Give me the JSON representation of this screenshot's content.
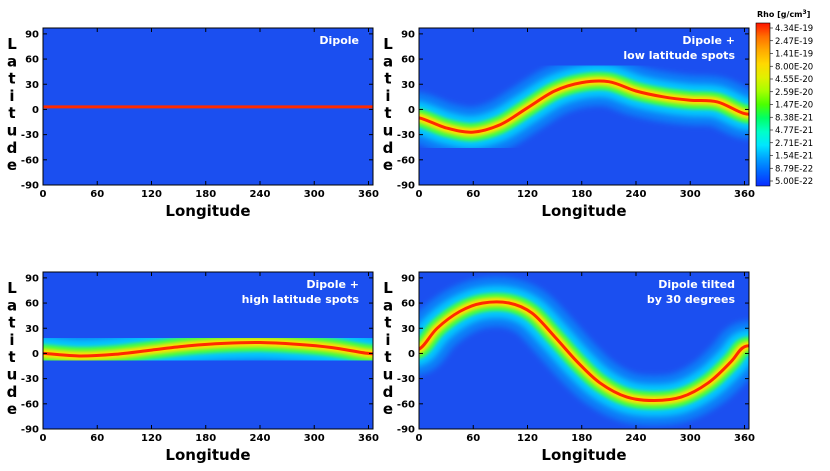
{
  "chart_data": [
    {
      "type": "heatmap",
      "title_lines": [
        "Dipole"
      ],
      "xlabel": "Longitude",
      "ylabel": "Latitude",
      "xlim": [
        0,
        365
      ],
      "ylim": [
        -90,
        97
      ],
      "xticks": [
        "0",
        "60",
        "120",
        "180",
        "240",
        "300",
        "360"
      ],
      "yticks": [
        "90",
        "60",
        "30",
        "0",
        "-30",
        "-60",
        "-90"
      ],
      "current_sheet": [
        [
          0,
          3
        ],
        [
          60,
          3
        ],
        [
          120,
          3
        ],
        [
          180,
          3
        ],
        [
          240,
          3
        ],
        [
          300,
          3
        ],
        [
          360,
          3
        ]
      ]
    },
    {
      "type": "heatmap",
      "title_lines": [
        "Dipole +",
        "low latitude spots"
      ],
      "xlabel": "Longitude",
      "ylabel": "Latitude",
      "xlim": [
        0,
        365
      ],
      "ylim": [
        -90,
        97
      ],
      "xticks": [
        "0",
        "60",
        "120",
        "180",
        "240",
        "300",
        "360"
      ],
      "yticks": [
        "90",
        "60",
        "30",
        "0",
        "-30",
        "-60",
        "-90"
      ],
      "current_sheet": [
        [
          0,
          -10
        ],
        [
          30,
          -22
        ],
        [
          60,
          -27
        ],
        [
          90,
          -18
        ],
        [
          120,
          2
        ],
        [
          150,
          22
        ],
        [
          180,
          32
        ],
        [
          210,
          33
        ],
        [
          240,
          22
        ],
        [
          270,
          15
        ],
        [
          300,
          11
        ],
        [
          330,
          9
        ],
        [
          360,
          -5
        ]
      ]
    },
    {
      "type": "heatmap",
      "title_lines": [
        "Dipole +",
        "high latitude spots"
      ],
      "xlabel": "Longitude",
      "ylabel": "Latitude",
      "xlim": [
        0,
        365
      ],
      "ylim": [
        -90,
        97
      ],
      "xticks": [
        "0",
        "60",
        "120",
        "180",
        "240",
        "300",
        "360"
      ],
      "yticks": [
        "90",
        "60",
        "30",
        "0",
        "-30",
        "-60",
        "-90"
      ],
      "current_sheet": [
        [
          0,
          0
        ],
        [
          40,
          -3
        ],
        [
          80,
          -1
        ],
        [
          120,
          4
        ],
        [
          160,
          9
        ],
        [
          200,
          12
        ],
        [
          240,
          13
        ],
        [
          280,
          11
        ],
        [
          320,
          7
        ],
        [
          360,
          0
        ]
      ]
    },
    {
      "type": "heatmap",
      "title_lines": [
        "Dipole tilted",
        "by 30 degrees"
      ],
      "xlabel": "Longitude",
      "ylabel": "Latitude",
      "xlim": [
        0,
        365
      ],
      "ylim": [
        -90,
        97
      ],
      "xticks": [
        "0",
        "60",
        "120",
        "180",
        "240",
        "300",
        "360"
      ],
      "yticks": [
        "90",
        "60",
        "30",
        "0",
        "-30",
        "-60",
        "-90"
      ],
      "current_sheet": [
        [
          0,
          5
        ],
        [
          20,
          30
        ],
        [
          45,
          50
        ],
        [
          70,
          60
        ],
        [
          100,
          60
        ],
        [
          125,
          48
        ],
        [
          150,
          20
        ],
        [
          175,
          -10
        ],
        [
          200,
          -35
        ],
        [
          230,
          -52
        ],
        [
          260,
          -56
        ],
        [
          290,
          -52
        ],
        [
          320,
          -35
        ],
        [
          345,
          -10
        ],
        [
          360,
          8
        ]
      ]
    }
  ],
  "colorbar": {
    "title_plain": "Rho [g/cm",
    "title_sup": "3",
    "title_close": "]",
    "labels": [
      "4.34E-19",
      "2.47E-19",
      "1.41E-19",
      "8.00E-20",
      "4.55E-20",
      "2.59E-20",
      "1.47E-20",
      "8.38E-21",
      "4.77E-21",
      "2.71E-21",
      "1.54E-21",
      "8.79E-22",
      "5.00E-22"
    ],
    "colors": [
      "#ff1400",
      "#ff6e00",
      "#ffaa00",
      "#ffd800",
      "#e1f000",
      "#a6ff00",
      "#4bff00",
      "#00ff66",
      "#00ffc8",
      "#00e6ff",
      "#00a0ff",
      "#0064ff",
      "#0a2cff"
    ]
  },
  "colors": {
    "background": "#1b4ff0",
    "sheet_core": "#ff2a00",
    "sheet_inner": "#ffe100",
    "sheet_mid": "#46ff3c",
    "sheet_outer": "#00e1ff",
    "sheet_halo": "#0aa3ff"
  }
}
